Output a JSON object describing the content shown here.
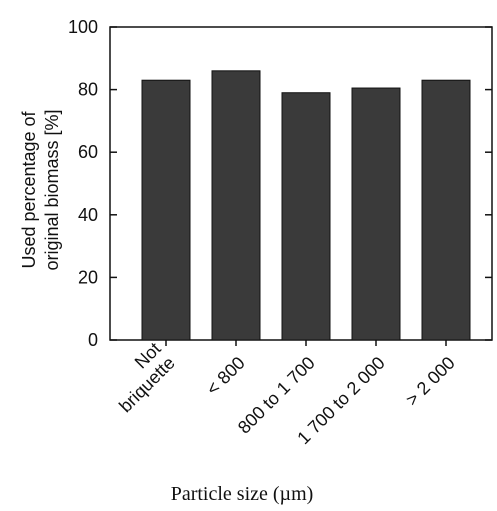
{
  "chart_data": {
    "type": "bar",
    "categories": [
      "Not\nbriquette",
      "< 800",
      "800 to 1 700",
      "1 700 to 2 000",
      "> 2 000"
    ],
    "values": [
      83,
      86,
      79,
      80.5,
      83
    ],
    "ylim": [
      0,
      100
    ],
    "yticks": [
      "0",
      "20",
      "40",
      "60",
      "80",
      "100"
    ],
    "ylabel_line1": "Used percentage of",
    "ylabel_line2": "original biomass [%]",
    "xlabel": "Particle size (µm)",
    "bar_color": "#3a3a3a",
    "grid": false
  }
}
